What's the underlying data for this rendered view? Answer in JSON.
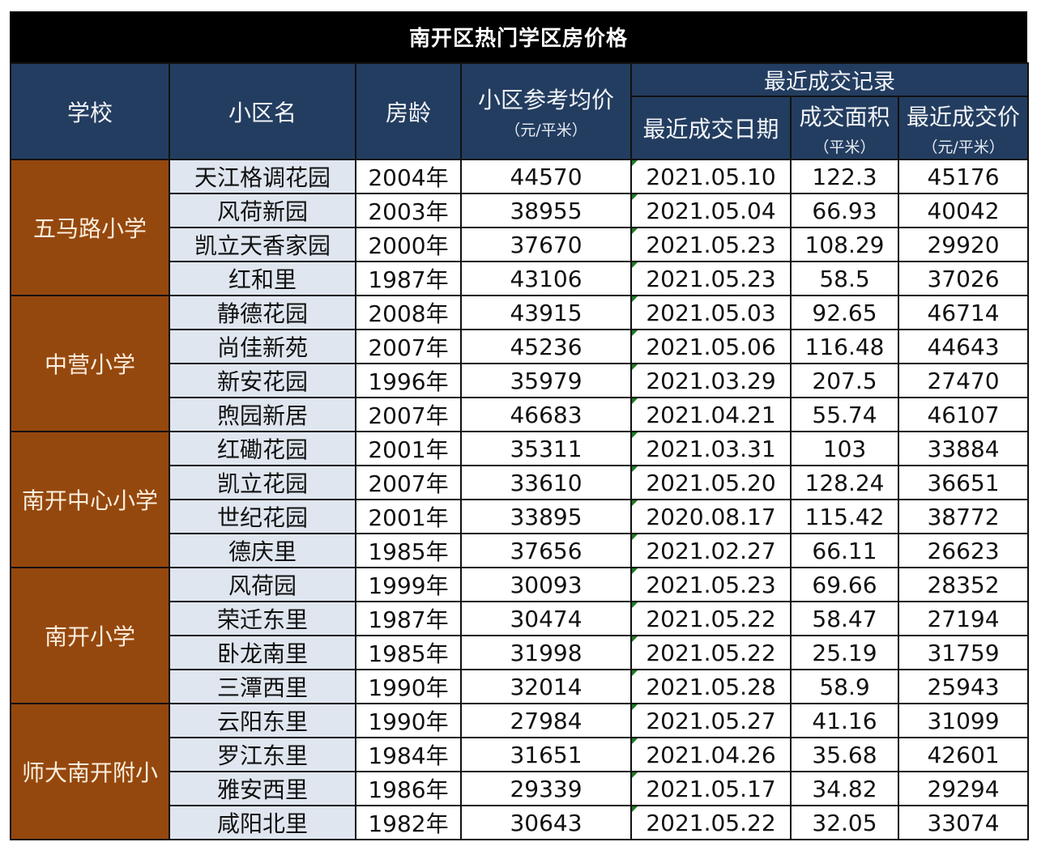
{
  "title": "南开区热门学区房价格",
  "header": {
    "school": "学校",
    "community": "小区名",
    "house_age": "房龄",
    "avg_price": "小区参考均价",
    "avg_price_unit": "（元/平米）",
    "recent_group": "最近成交记录",
    "deal_date": "最近成交日期",
    "deal_area": "成交面积",
    "deal_area_unit": "（平米）",
    "deal_price": "最近成交价",
    "deal_price_unit": "（元/平米）"
  },
  "colors": {
    "title_bg": "#000000",
    "header_bg": "#233d60",
    "school_bg": "#95480e",
    "name_bg": "#dfe6ef"
  },
  "groups": [
    {
      "school": "五马路小学",
      "rows": [
        {
          "name": "天江格调花园",
          "age": "2004年",
          "avg": "44570",
          "date": "2021.05.10",
          "area": "122.3",
          "price": "45176"
        },
        {
          "name": "风荷新园",
          "age": "2003年",
          "avg": "38955",
          "date": "2021.05.04",
          "area": "66.93",
          "price": "40042"
        },
        {
          "name": "凯立天香家园",
          "age": "2000年",
          "avg": "37670",
          "date": "2021.05.23",
          "area": "108.29",
          "price": "29920"
        },
        {
          "name": "红和里",
          "age": "1987年",
          "avg": "43106",
          "date": "2021.05.23",
          "area": "58.5",
          "price": "37026"
        }
      ]
    },
    {
      "school": "中营小学",
      "rows": [
        {
          "name": "静德花园",
          "age": "2008年",
          "avg": "43915",
          "date": "2021.05.03",
          "area": "92.65",
          "price": "46714"
        },
        {
          "name": "尚佳新苑",
          "age": "2007年",
          "avg": "45236",
          "date": "2021.05.06",
          "area": "116.48",
          "price": "44643"
        },
        {
          "name": "新安花园",
          "age": "1996年",
          "avg": "35979",
          "date": "2021.03.29",
          "area": "207.5",
          "price": "27470"
        },
        {
          "name": "煦园新居",
          "age": "2007年",
          "avg": "46683",
          "date": "2021.04.21",
          "area": "55.74",
          "price": "46107"
        }
      ]
    },
    {
      "school": "南开中心小学",
      "rows": [
        {
          "name": "红磡花园",
          "age": "2001年",
          "avg": "35311",
          "date": "2021.03.31",
          "area": "103",
          "price": "33884"
        },
        {
          "name": "凯立花园",
          "age": "2007年",
          "avg": "33610",
          "date": "2021.05.20",
          "area": "128.24",
          "price": "36651"
        },
        {
          "name": "世纪花园",
          "age": "2001年",
          "avg": "33895",
          "date": "2020.08.17",
          "area": "115.42",
          "price": "38772"
        },
        {
          "name": "德庆里",
          "age": "1985年",
          "avg": "37656",
          "date": "2021.02.27",
          "area": "66.11",
          "price": "26623"
        }
      ]
    },
    {
      "school": "南开小学",
      "rows": [
        {
          "name": "风荷园",
          "age": "1999年",
          "avg": "30093",
          "date": "2021.05.23",
          "area": "69.66",
          "price": "28352"
        },
        {
          "name": "荣迁东里",
          "age": "1987年",
          "avg": "30474",
          "date": "2021.05.22",
          "area": "58.47",
          "price": "27194"
        },
        {
          "name": "卧龙南里",
          "age": "1985年",
          "avg": "31998",
          "date": "2021.05.22",
          "area": "25.19",
          "price": "31759"
        },
        {
          "name": "三潭西里",
          "age": "1990年",
          "avg": "32014",
          "date": "2021.05.28",
          "area": "58.9",
          "price": "25943"
        }
      ]
    },
    {
      "school": "师大南开附小",
      "rows": [
        {
          "name": "云阳东里",
          "age": "1990年",
          "avg": "27984",
          "date": "2021.05.27",
          "area": "41.16",
          "price": "31099"
        },
        {
          "name": "罗江东里",
          "age": "1984年",
          "avg": "31651",
          "date": "2021.04.26",
          "area": "35.68",
          "price": "42601"
        },
        {
          "name": "雅安西里",
          "age": "1986年",
          "avg": "29339",
          "date": "2021.05.17",
          "area": "34.82",
          "price": "29294"
        },
        {
          "name": "咸阳北里",
          "age": "1982年",
          "avg": "30643",
          "date": "2021.05.22",
          "area": "32.05",
          "price": "33074"
        }
      ]
    }
  ]
}
